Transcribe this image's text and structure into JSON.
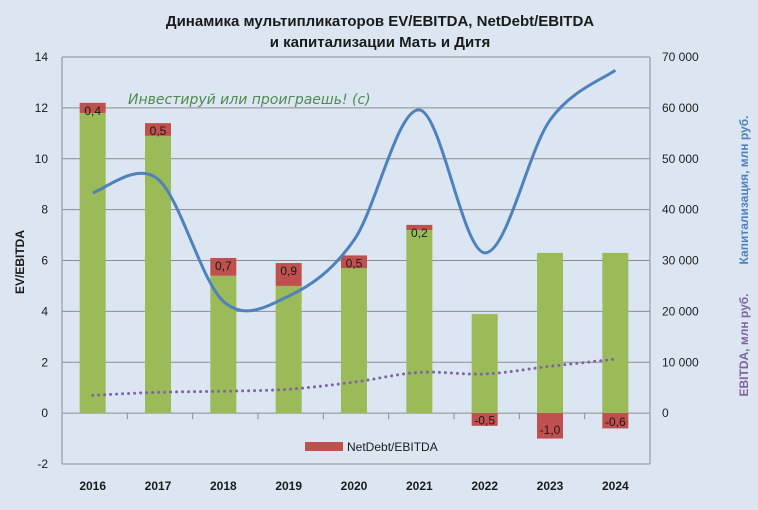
{
  "chart_data": {
    "type": "bar",
    "title": [
      "Динамика мультипликаторов EV/EBITDA, NetDebt/EBITDA",
      "и капитализации Мать и Дитя"
    ],
    "annotation": "Инвестируй или проиграешь! (с)",
    "categories": [
      "2016",
      "2017",
      "2018",
      "2019",
      "2020",
      "2021",
      "2022",
      "2023",
      "2024"
    ],
    "ylabel_left": "EV/EBITDA",
    "ylabel_right_1": "Капитализация,  млн руб.",
    "ylabel_right_2": "EBITDA, млн руб.",
    "ylim_left": [
      -2,
      14
    ],
    "yticks_left": [
      "-2",
      "0",
      "2",
      "4",
      "6",
      "8",
      "10",
      "12",
      "14"
    ],
    "ylim_right": [
      0,
      70000
    ],
    "yticks_right": [
      "0",
      "10 000",
      "20 000",
      "30 000",
      "40 000",
      "50 000",
      "60 000",
      "70 000"
    ],
    "grid": true,
    "legend": {
      "position": "bottom",
      "entries": [
        "NetDebt/EBITDA"
      ]
    },
    "series": [
      {
        "key": "ev_part",
        "axis": "left",
        "kind": "stacked-bar",
        "color": "#9bbb59",
        "values": [
          11.8,
          10.9,
          5.4,
          5.0,
          5.7,
          7.2,
          3.9,
          6.3,
          6.3
        ]
      },
      {
        "name": "NetDebt/EBITDA",
        "axis": "left",
        "kind": "stacked-bar",
        "color": "#c0504d",
        "values": [
          0.4,
          0.5,
          0.7,
          0.9,
          0.5,
          0.2,
          -0.5,
          -1.0,
          -0.6
        ],
        "labels": [
          "0,4",
          "0,5",
          "0,7",
          "0,9",
          "0,5",
          "0,2",
          "-0,5",
          "-1,0",
          "-0,6"
        ]
      },
      {
        "key": "capitalization",
        "axis": "right",
        "kind": "smooth-line",
        "color": "#4f81bd",
        "values": [
          43300,
          46000,
          22000,
          23000,
          34000,
          59600,
          31500,
          57600,
          67400
        ]
      },
      {
        "key": "ebitda",
        "axis": "right",
        "kind": "dotted-line",
        "color": "#8064a2",
        "values": [
          3500,
          4100,
          4300,
          4700,
          6100,
          8000,
          7700,
          9200,
          10600
        ]
      }
    ]
  }
}
